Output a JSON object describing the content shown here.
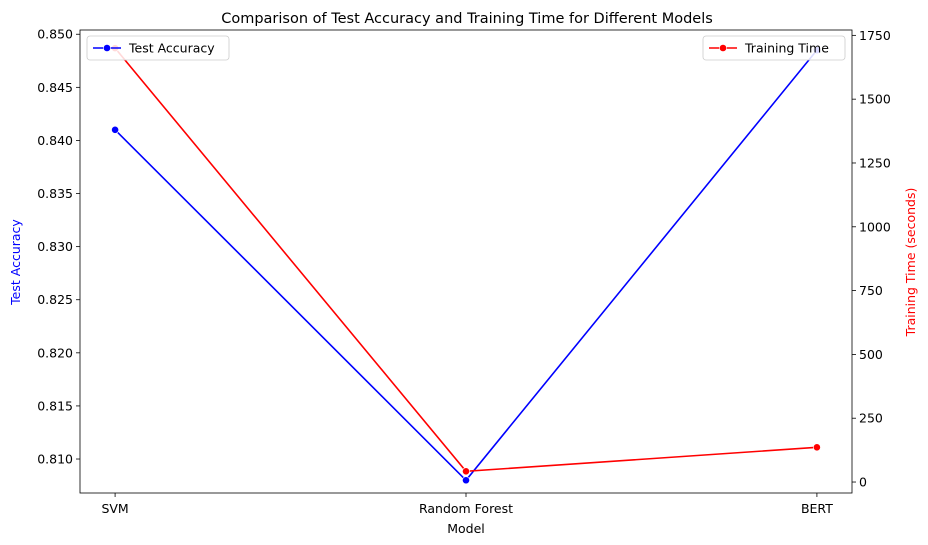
{
  "chart_data": {
    "type": "line",
    "title": "Comparison of Test Accuracy and Training Time for Different Models",
    "xlabel": "Model",
    "categories": [
      "SVM",
      "Random Forest",
      "BERT"
    ],
    "left_axis": {
      "label": "Test Accuracy",
      "color": "#0000ff",
      "ylim": [
        0.8068,
        0.8504
      ],
      "ticks": [
        "0.810",
        "0.815",
        "0.820",
        "0.825",
        "0.830",
        "0.835",
        "0.840",
        "0.845",
        "0.850"
      ]
    },
    "right_axis": {
      "label": "Training Time (seconds)",
      "color": "#ff0000",
      "ylim": [
        -43,
        1771
      ],
      "ticks": [
        "0",
        "250",
        "500",
        "750",
        "1000",
        "1250",
        "1500",
        "1750"
      ]
    },
    "series": [
      {
        "name": "Test Accuracy",
        "axis": "left",
        "color": "#0000ff",
        "values": [
          0.841,
          0.808,
          0.8485
        ]
      },
      {
        "name": "Training Time",
        "axis": "right",
        "color": "#ff0000",
        "values": [
          1700,
          42,
          136
        ]
      }
    ],
    "legends": [
      {
        "series": "Test Accuracy",
        "position": "upper-left"
      },
      {
        "series": "Training Time",
        "position": "upper-right"
      }
    ],
    "grid": false
  }
}
